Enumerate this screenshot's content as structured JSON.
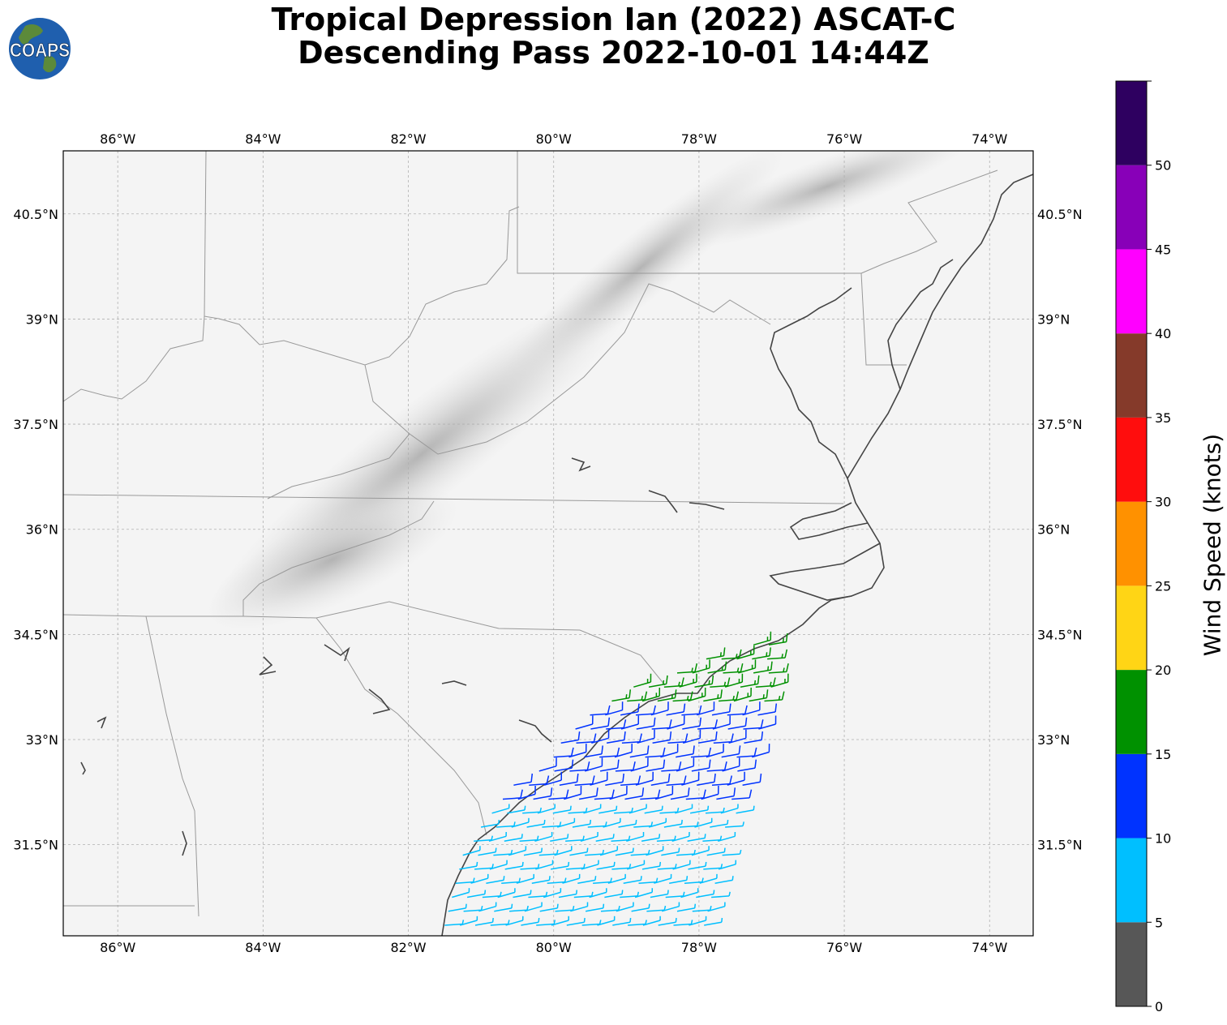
{
  "title": {
    "line1": "Tropical Depression Ian (2022) ASCAT-C",
    "line2": "Descending Pass 2022-10-01 14:44Z"
  },
  "logo": {
    "text": "COAPS",
    "colors": {
      "ocean": "#1f5fae",
      "land": "#5c8a3a",
      "outline": "#ffffff"
    }
  },
  "map": {
    "lon_range": [
      -86.75,
      -73.4
    ],
    "lat_range": [
      30.2,
      41.4
    ],
    "lon_ticks": [
      {
        "value": -86,
        "label": "86°W"
      },
      {
        "value": -84,
        "label": "84°W"
      },
      {
        "value": -82,
        "label": "82°W"
      },
      {
        "value": -80,
        "label": "80°W"
      },
      {
        "value": -78,
        "label": "78°W"
      },
      {
        "value": -76,
        "label": "76°W"
      },
      {
        "value": -74,
        "label": "74°W"
      }
    ],
    "lat_ticks": [
      {
        "value": 40.5,
        "label": "40.5°N"
      },
      {
        "value": 39,
        "label": "39°N"
      },
      {
        "value": 37.5,
        "label": "37.5°N"
      },
      {
        "value": 36,
        "label": "36°N"
      },
      {
        "value": 34.5,
        "label": "34.5°N"
      },
      {
        "value": 33,
        "label": "33°N"
      },
      {
        "value": 31.5,
        "label": "31.5°N"
      }
    ],
    "grid": true,
    "background": "#f4f4f4",
    "coastline_color": "#444444",
    "border_color": "#999999"
  },
  "colorbar": {
    "label": "Wind Speed (knots)",
    "ticks": [
      "0",
      "5",
      "10",
      "15",
      "20",
      "25",
      "30",
      "35",
      "40",
      "45",
      "50"
    ],
    "bins": [
      {
        "min": 0,
        "max": 5,
        "color": "#575757"
      },
      {
        "min": 5,
        "max": 10,
        "color": "#00bfff"
      },
      {
        "min": 10,
        "max": 15,
        "color": "#0033ff"
      },
      {
        "min": 15,
        "max": 20,
        "color": "#009100"
      },
      {
        "min": 20,
        "max": 25,
        "color": "#ffd515"
      },
      {
        "min": 25,
        "max": 30,
        "color": "#ff9100"
      },
      {
        "min": 30,
        "max": 35,
        "color": "#ff0d0d"
      },
      {
        "min": 35,
        "max": 40,
        "color": "#853a2a"
      },
      {
        "min": 40,
        "max": 45,
        "color": "#ff00ff"
      },
      {
        "min": 45,
        "max": 50,
        "color": "#8800b8"
      },
      {
        "min": 50,
        "max": 55,
        "color": "#2e0060"
      }
    ]
  },
  "wind_swath": {
    "description_type": "wind barbs",
    "rows": [
      {
        "lat": 34.35,
        "lon_start": -77.25,
        "lon_end": -76.85,
        "speed_kt": 17
      },
      {
        "lat": 34.15,
        "lon_start": -77.9,
        "lon_end": -76.9,
        "speed_kt": 17
      },
      {
        "lat": 33.95,
        "lon_start": -78.3,
        "lon_end": -76.95,
        "speed_kt": 16
      },
      {
        "lat": 33.75,
        "lon_start": -78.9,
        "lon_end": -77.0,
        "speed_kt": 16
      },
      {
        "lat": 33.55,
        "lon_start": -79.2,
        "lon_end": -77.05,
        "speed_kt": 15
      },
      {
        "lat": 33.35,
        "lon_start": -79.5,
        "lon_end": -77.1,
        "speed_kt": 14
      },
      {
        "lat": 33.15,
        "lon_start": -79.7,
        "lon_end": -77.15,
        "speed_kt": 13
      },
      {
        "lat": 32.95,
        "lon_start": -79.9,
        "lon_end": -77.2,
        "speed_kt": 12
      },
      {
        "lat": 32.75,
        "lon_start": -80.0,
        "lon_end": -77.25,
        "speed_kt": 12
      },
      {
        "lat": 32.55,
        "lon_start": -80.2,
        "lon_end": -77.3,
        "speed_kt": 11
      },
      {
        "lat": 32.35,
        "lon_start": -80.55,
        "lon_end": -77.35,
        "speed_kt": 10
      },
      {
        "lat": 32.15,
        "lon_start": -80.7,
        "lon_end": -77.4,
        "speed_kt": 10
      },
      {
        "lat": 31.95,
        "lon_start": -80.85,
        "lon_end": -77.45,
        "speed_kt": 9
      },
      {
        "lat": 31.75,
        "lon_start": -81.0,
        "lon_end": -77.5,
        "speed_kt": 9
      },
      {
        "lat": 31.55,
        "lon_start": -81.1,
        "lon_end": -77.55,
        "speed_kt": 8
      },
      {
        "lat": 31.35,
        "lon_start": -81.25,
        "lon_end": -77.6,
        "speed_kt": 8
      },
      {
        "lat": 31.15,
        "lon_start": -81.3,
        "lon_end": -77.65,
        "speed_kt": 7
      },
      {
        "lat": 30.95,
        "lon_start": -81.35,
        "lon_end": -77.7,
        "speed_kt": 7
      },
      {
        "lat": 30.75,
        "lon_start": -81.4,
        "lon_end": -77.75,
        "speed_kt": 6
      },
      {
        "lat": 30.55,
        "lon_start": -81.45,
        "lon_end": -77.8,
        "speed_kt": 6
      },
      {
        "lat": 30.35,
        "lon_start": -81.5,
        "lon_end": -77.85,
        "speed_kt": 6
      }
    ]
  }
}
